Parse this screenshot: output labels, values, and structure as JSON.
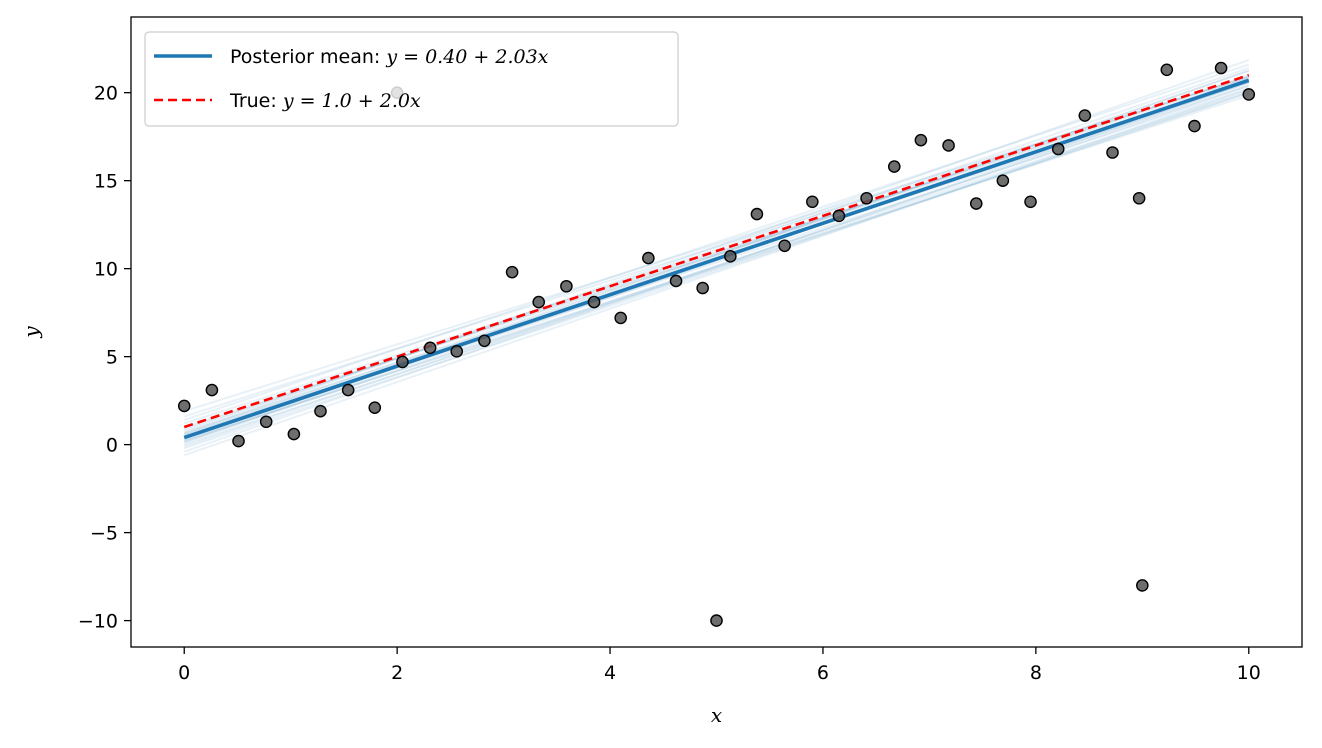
{
  "chart_data": {
    "type": "scatter",
    "xlabel": "x",
    "ylabel": "y",
    "xlim": [
      -0.5,
      10.5
    ],
    "ylim": [
      -11.5,
      24.3
    ],
    "xticks": [
      0,
      2,
      4,
      6,
      8,
      10
    ],
    "yticks": [
      -10,
      -5,
      0,
      5,
      10,
      15,
      20
    ],
    "xtick_labels": [
      "0",
      "2",
      "4",
      "6",
      "8",
      "10"
    ],
    "ytick_labels": [
      "−10",
      "−5",
      "0",
      "5",
      "10",
      "15",
      "20"
    ],
    "legend_placement": "upper-left",
    "grid": false,
    "colors": {
      "posterior_mean": "#1f77b4",
      "posterior_samples": "#1f77b4",
      "true_line": "#ff0000",
      "points_fill": "#555555",
      "points_edge": "#000000"
    },
    "points": {
      "x": [
        0.0,
        0.26,
        0.51,
        0.77,
        1.03,
        1.28,
        1.54,
        1.79,
        2.0,
        2.05,
        2.31,
        2.56,
        2.82,
        3.08,
        3.33,
        3.59,
        3.85,
        4.1,
        4.36,
        4.62,
        4.87,
        5.0,
        5.13,
        5.38,
        5.64,
        5.9,
        6.15,
        6.41,
        6.67,
        6.92,
        7.18,
        7.44,
        7.69,
        7.95,
        8.21,
        8.46,
        8.72,
        8.97,
        9.0,
        9.23,
        9.49,
        9.74,
        10.0
      ],
      "y": [
        2.2,
        3.1,
        0.2,
        1.3,
        0.6,
        1.9,
        3.1,
        2.1,
        20.0,
        4.7,
        5.5,
        5.3,
        5.9,
        9.8,
        8.1,
        9.0,
        8.1,
        7.2,
        10.6,
        9.3,
        8.9,
        -10.0,
        10.7,
        13.1,
        11.3,
        13.8,
        13.0,
        14.0,
        15.8,
        17.3,
        17.0,
        13.7,
        15.0,
        13.8,
        16.8,
        18.7,
        16.6,
        14.0,
        -8.0,
        21.3,
        18.1,
        21.4,
        19.9
      ]
    },
    "series": [
      {
        "name": "Posterior mean: y = 0.40 + 2.03x",
        "legend_prefix": "Posterior mean: ",
        "legend_math": "y = 0.40 + 2.03x",
        "intercept": 0.4,
        "slope": 2.03,
        "style": "solid"
      },
      {
        "name": "True: y = 1.0 + 2.0x",
        "legend_prefix": "True: ",
        "legend_math": "y = 1.0 + 2.0x",
        "intercept": 1.0,
        "slope": 2.0,
        "style": "dashed"
      }
    ],
    "posterior_samples": {
      "intercepts": [
        -0.6,
        -0.4,
        -0.2,
        0.0,
        0.1,
        0.2,
        0.3,
        0.4,
        0.5,
        0.6,
        0.7,
        0.8,
        1.0,
        1.2,
        1.4,
        1.6,
        1.9,
        0.35,
        0.45,
        0.55,
        0.15,
        0.65,
        0.25,
        0.9,
        -0.1
      ],
      "slopes": [
        2.08,
        2.1,
        2.02,
        2.0,
        2.07,
        1.99,
        2.05,
        2.03,
        2.01,
        2.04,
        1.97,
        2.06,
        1.96,
        1.95,
        2.02,
        1.93,
        1.9,
        2.09,
        1.98,
        2.0,
        2.11,
        2.12,
        1.96,
        2.0,
        2.05
      ]
    }
  }
}
